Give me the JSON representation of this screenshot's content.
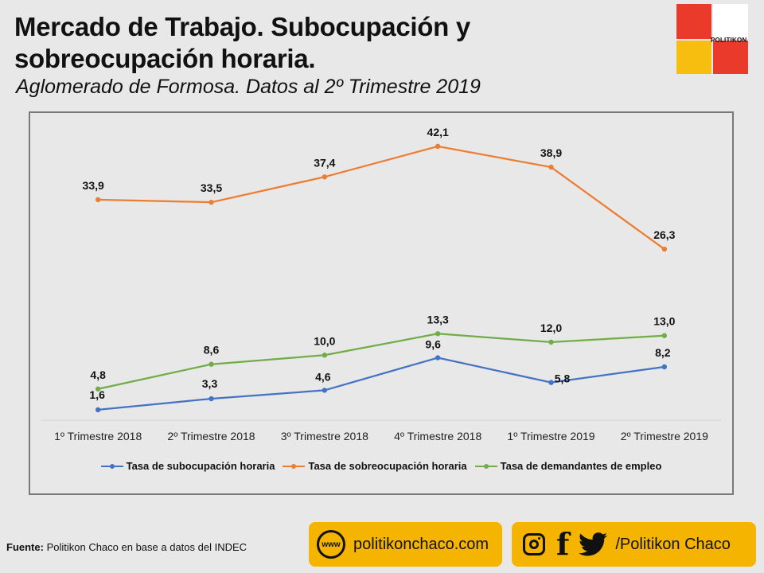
{
  "header": {
    "title": "Mercado de Trabajo. Subocupación y sobreocupación horaria.",
    "subtitle": "Aglomerado de Formosa. Datos al 2º Trimestre 2019",
    "logo_text": "POLITIKON"
  },
  "chart_data": {
    "type": "line",
    "categories": [
      "1º Trimestre 2018",
      "2º Trimestre 2018",
      "3º Trimestre 2018",
      "4º Trimestre 2018",
      "1º Trimestre 2019",
      "2º Trimestre 2019"
    ],
    "series": [
      {
        "name": "Tasa de subocupación horaria",
        "color": "#4472c4",
        "values": [
          1.6,
          3.3,
          4.6,
          9.6,
          5.8,
          8.2
        ],
        "labels": [
          "1,6",
          "3,3",
          "4,6",
          "9,6",
          "5,8",
          "8,2"
        ]
      },
      {
        "name": "Tasa de sobreocupación horaria",
        "color": "#ed7d31",
        "values": [
          33.9,
          33.5,
          37.4,
          42.1,
          38.9,
          26.3
        ],
        "labels": [
          "33,9",
          "33,5",
          "37,4",
          "42,1",
          "38,9",
          "26,3"
        ]
      },
      {
        "name": "Tasa de demandantes de empleo",
        "color": "#70ad47",
        "values": [
          4.8,
          8.6,
          10.0,
          13.3,
          12.0,
          13.0
        ],
        "labels": [
          "4,8",
          "8,6",
          "10,0",
          "13,3",
          "12,0",
          "13,0"
        ]
      }
    ],
    "ylim": [
      0,
      46
    ],
    "grid": false,
    "legend_position": "bottom"
  },
  "footer": {
    "source_label": "Fuente:",
    "source_text": " Politikon  Chaco en base a datos del INDEC",
    "web_label": "politikonchaco.com",
    "www_icon_text": "www",
    "social_label": "/Politikon  Chaco",
    "social_icons": [
      "instagram-icon",
      "facebook-icon",
      "twitter-icon"
    ]
  }
}
